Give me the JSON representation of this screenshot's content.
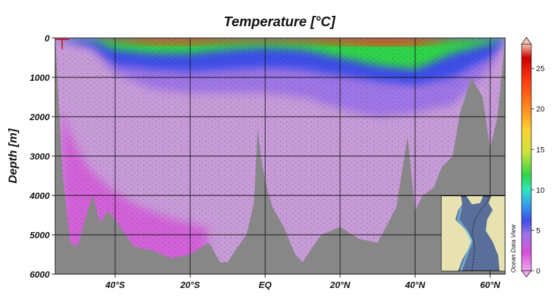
{
  "chart_data": {
    "type": "heatmap",
    "title": "Temperature [°C]",
    "ylabel": "Depth [m]",
    "xlabel": "",
    "x_ticks": [
      "40°S",
      "20°S",
      "EQ",
      "20°N",
      "40°N",
      "60°N"
    ],
    "x_tick_values": [
      -40,
      -20,
      0,
      20,
      40,
      60
    ],
    "xlim": [
      -56,
      64
    ],
    "y_ticks": [
      0,
      1000,
      2000,
      3000,
      4000,
      5000,
      6000
    ],
    "ylim": [
      6000,
      0
    ],
    "y_reversed": true,
    "grid": true,
    "colorbar": {
      "ticks": [
        0,
        5,
        10,
        15,
        20,
        25
      ],
      "range": [
        0,
        28
      ],
      "colors": [
        "#f2a8ef",
        "#d550d8",
        "#9e74e6",
        "#3d4ee8",
        "#34a8ea",
        "#2fe8ba",
        "#2fd34a",
        "#c9e33a",
        "#ffd233",
        "#ff8a1f",
        "#ff3b10",
        "#cc0000",
        "#f7c7b5"
      ]
    },
    "isotherm_depths_m": {
      "latitude": [
        -56,
        -46,
        -40,
        -30,
        -20,
        -10,
        0,
        10,
        20,
        30,
        40,
        50,
        60,
        64
      ],
      "t_2C": [
        0,
        300,
        900,
        1300,
        1400,
        1400,
        1400,
        1500,
        1800,
        2000,
        1900,
        1700,
        800,
        0
      ],
      "t_5C": [
        0,
        200,
        700,
        800,
        850,
        800,
        750,
        800,
        950,
        1100,
        1200,
        1000,
        500,
        0
      ],
      "t_10C": [
        0,
        60,
        300,
        400,
        400,
        300,
        250,
        300,
        500,
        700,
        800,
        400,
        150,
        0
      ],
      "t_20C": [
        0,
        0,
        60,
        150,
        150,
        100,
        80,
        100,
        150,
        200,
        180,
        40,
        0,
        0
      ]
    },
    "bottom_topography_m": {
      "latitude": [
        -56,
        -54,
        -52,
        -50,
        -48,
        -46,
        -44,
        -42,
        -40,
        -38,
        -35,
        -30,
        -25,
        -20,
        -15,
        -12,
        -10,
        -8,
        -5,
        -3,
        -2,
        -1,
        0,
        1,
        2,
        5,
        8,
        10,
        12,
        15,
        20,
        25,
        30,
        35,
        38,
        40,
        42,
        45,
        47,
        50,
        52,
        55,
        58,
        60,
        62,
        64
      ],
      "depth": [
        0,
        3500,
        5200,
        5300,
        4600,
        4000,
        4700,
        4400,
        4600,
        4900,
        5300,
        5400,
        5600,
        5500,
        5200,
        5700,
        5700,
        5400,
        5000,
        4200,
        2300,
        3100,
        3600,
        4000,
        4300,
        4800,
        5500,
        5700,
        5400,
        5000,
        4800,
        5100,
        5200,
        4300,
        2500,
        4400,
        4000,
        3800,
        3300,
        3000,
        1900,
        1000,
        1500,
        2800,
        2000,
        0
      ]
    },
    "station_marker_latitude": -56,
    "inset_map": "Atlantic Ocean section track",
    "credit": "Ocean Data View"
  }
}
